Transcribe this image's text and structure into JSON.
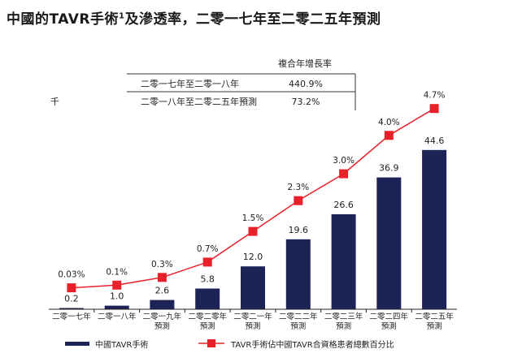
{
  "title": {
    "text": "中國的TAVR手術",
    "superscript": "1",
    "suffix": "及滲透率，二零一七年至二零二五年預測"
  },
  "unit_label": "千",
  "cagr_table": {
    "header": "複合年增長率",
    "rows": [
      {
        "period": "二零一七年至二零一八年",
        "value": "440.9%"
      },
      {
        "period": "二零一八年至二零二五年預測",
        "value": "73.2%"
      }
    ]
  },
  "chart_data": {
    "type": "bar",
    "categories": [
      [
        "二零一七年"
      ],
      [
        "二零一八年"
      ],
      [
        "二零一九年",
        "預測"
      ],
      [
        "二零二零年",
        "預測"
      ],
      [
        "二零二一年",
        "預測"
      ],
      [
        "二零二二年",
        "預測"
      ],
      [
        "二零二三年",
        "預測"
      ],
      [
        "二零二四年",
        "預測"
      ],
      [
        "二零二五年",
        "預測"
      ]
    ],
    "series": [
      {
        "name": "中國TAVR手術",
        "type": "bar",
        "color": "#1b2357",
        "values": [
          0.2,
          1.0,
          2.6,
          5.8,
          12.0,
          19.6,
          26.6,
          36.9,
          44.6
        ],
        "labels": [
          "0.2",
          "1.0",
          "2.6",
          "5.8",
          "12.0",
          "19.6",
          "26.6",
          "36.9",
          "44.6"
        ]
      },
      {
        "name": "TAVR手術佔中國TAVR合資格患者總數百分比",
        "type": "line",
        "color": "#e8202a",
        "values": [
          0.03,
          0.1,
          0.3,
          0.7,
          1.5,
          2.3,
          3.0,
          4.0,
          4.7
        ],
        "labels": [
          "0.03%",
          "0.1%",
          "0.3%",
          "0.7%",
          "1.5%",
          "2.3%",
          "3.0%",
          "4.0%",
          "4.7%"
        ]
      }
    ],
    "ylim_bar": [
      0,
      60
    ],
    "ylim_line": [
      0,
      6
    ],
    "grid": false,
    "legend_position": "bottom"
  }
}
